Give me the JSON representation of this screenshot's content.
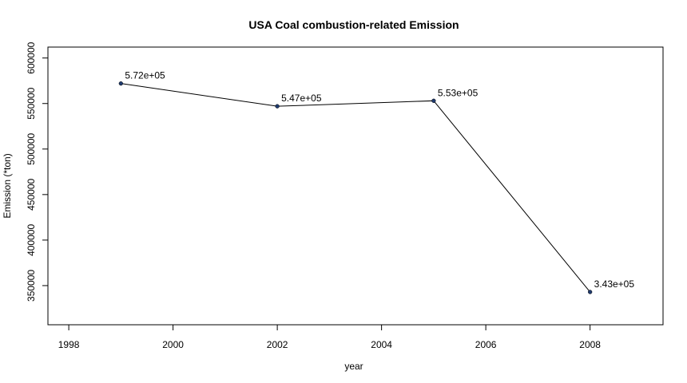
{
  "chart_data": {
    "type": "line",
    "title": "USA Coal combustion-related Emission",
    "xlabel": "year",
    "ylabel": "Emission (*ton)",
    "xlim": [
      1997.6,
      2009.4
    ],
    "ylim": [
      307000,
      612000
    ],
    "x_ticks": [
      "1998",
      "2000",
      "2002",
      "2004",
      "2006",
      "2008"
    ],
    "y_ticks": [
      "350000",
      "400000",
      "450000",
      "500000",
      "550000",
      "600000"
    ],
    "grid": false,
    "legend": "none",
    "series": [
      {
        "x": [
          1999,
          2002,
          2005,
          2008
        ],
        "y": [
          572000,
          547000,
          553000,
          343000
        ],
        "labels": [
          "5.72e+05",
          "5.47e+05",
          "5.53e+05",
          "3.43e+05"
        ]
      }
    ],
    "colors": {
      "line": "#000000",
      "point": "#1f3a6e",
      "frame": "#000000"
    }
  }
}
